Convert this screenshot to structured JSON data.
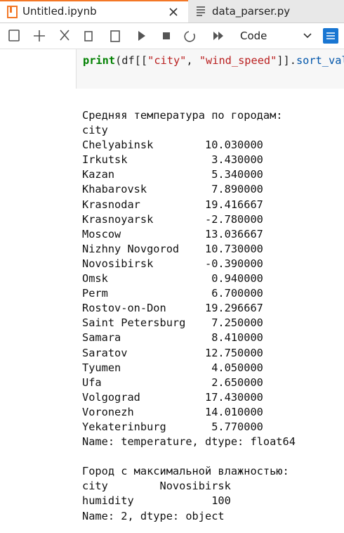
{
  "tabs": [
    "Untitled.ipynb",
    "data_parser.py"
  ],
  "toolbar": {
    "cell_type": "Code"
  },
  "code": [
    {
      "text": "print",
      "kind": "builtin"
    },
    {
      "text": "(df[[",
      "kind": "plain"
    },
    {
      "text": "\"city\"",
      "kind": "string"
    },
    {
      "text": ", ",
      "kind": "plain"
    },
    {
      "text": "\"wind_speed\"",
      "kind": "string"
    },
    {
      "text": "]].",
      "kind": "plain"
    },
    {
      "text": "sort_valu",
      "kind": "attr"
    }
  ],
  "output": [
    "Средняя температура по городам:",
    "city",
    "Chelyabinsk        10.030000",
    "Irkutsk             3.430000",
    "Kazan               5.340000",
    "Khabarovsk          7.890000",
    "Krasnodar          19.416667",
    "Krasnoyarsk        -2.780000",
    "Moscow             13.036667",
    "Nizhny Novgorod    10.730000",
    "Novosibirsk        -0.390000",
    "Omsk                0.940000",
    "Perm                6.700000",
    "Rostov-on-Don      19.296667",
    "Saint Petersburg    7.250000",
    "Samara              8.410000",
    "Saratov            12.750000",
    "Tyumen              4.050000",
    "Ufa                 2.650000",
    "Volgograd          17.430000",
    "Voronezh           14.010000",
    "Yekaterinburg       5.770000",
    "Name: temperature, dtype: float64",
    " ",
    "Город с максимальной влажностью:",
    "city        Novosibirsk",
    "humidity            100",
    "Name: 2, dtype: object"
  ]
}
